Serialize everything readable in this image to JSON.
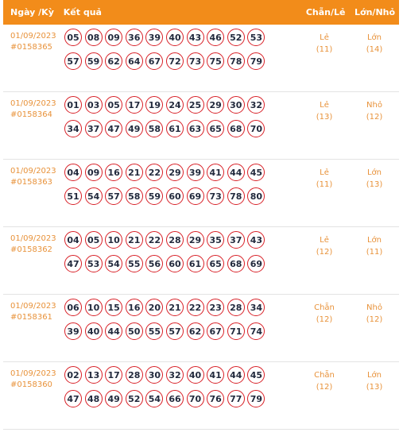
{
  "header": {
    "date_label": "Ngày /Kỳ",
    "result_label": "Kết quả",
    "chan_le_label": "Chẵn/Lẻ",
    "lon_nho_label": "Lớn/Nhỏ"
  },
  "rows": [
    {
      "date": "01/09/2023",
      "code": "#0158365",
      "line1": [
        "05",
        "08",
        "09",
        "36",
        "39",
        "40",
        "43",
        "46",
        "52",
        "53"
      ],
      "line2": [
        "57",
        "59",
        "62",
        "64",
        "67",
        "72",
        "73",
        "75",
        "78",
        "79"
      ],
      "chan_le": "Lẻ",
      "chan_le_count": "(11)",
      "lon_nho": "Lớn",
      "lon_nho_count": "(14)"
    },
    {
      "date": "01/09/2023",
      "code": "#0158364",
      "line1": [
        "01",
        "03",
        "05",
        "17",
        "19",
        "24",
        "25",
        "29",
        "30",
        "32"
      ],
      "line2": [
        "34",
        "37",
        "47",
        "49",
        "58",
        "61",
        "63",
        "65",
        "68",
        "70"
      ],
      "chan_le": "Lẻ",
      "chan_le_count": "(13)",
      "lon_nho": "Nhỏ",
      "lon_nho_count": "(12)"
    },
    {
      "date": "01/09/2023",
      "code": "#0158363",
      "line1": [
        "04",
        "09",
        "16",
        "21",
        "22",
        "29",
        "39",
        "41",
        "44",
        "45"
      ],
      "line2": [
        "51",
        "54",
        "57",
        "58",
        "59",
        "60",
        "69",
        "73",
        "78",
        "80"
      ],
      "chan_le": "Lẻ",
      "chan_le_count": "(11)",
      "lon_nho": "Lớn",
      "lon_nho_count": "(13)"
    },
    {
      "date": "01/09/2023",
      "code": "#0158362",
      "line1": [
        "04",
        "05",
        "10",
        "21",
        "22",
        "28",
        "29",
        "35",
        "37",
        "43"
      ],
      "line2": [
        "47",
        "53",
        "54",
        "55",
        "56",
        "60",
        "61",
        "65",
        "68",
        "69"
      ],
      "chan_le": "Lẻ",
      "chan_le_count": "(12)",
      "lon_nho": "Lớn",
      "lon_nho_count": "(11)"
    },
    {
      "date": "01/09/2023",
      "code": "#0158361",
      "line1": [
        "06",
        "10",
        "15",
        "16",
        "20",
        "21",
        "22",
        "23",
        "28",
        "34"
      ],
      "line2": [
        "39",
        "40",
        "44",
        "50",
        "55",
        "57",
        "62",
        "67",
        "71",
        "74"
      ],
      "chan_le": "Chẵn",
      "chan_le_count": "(12)",
      "lon_nho": "Nhỏ",
      "lon_nho_count": "(12)"
    },
    {
      "date": "01/09/2023",
      "code": "#0158360",
      "line1": [
        "02",
        "13",
        "17",
        "28",
        "30",
        "32",
        "40",
        "41",
        "44",
        "45"
      ],
      "line2": [
        "47",
        "48",
        "49",
        "52",
        "54",
        "66",
        "70",
        "76",
        "77",
        "79"
      ],
      "chan_le": "Chẵn",
      "chan_le_count": "(12)",
      "lon_nho": "Lớn",
      "lon_nho_count": "(13)"
    }
  ]
}
